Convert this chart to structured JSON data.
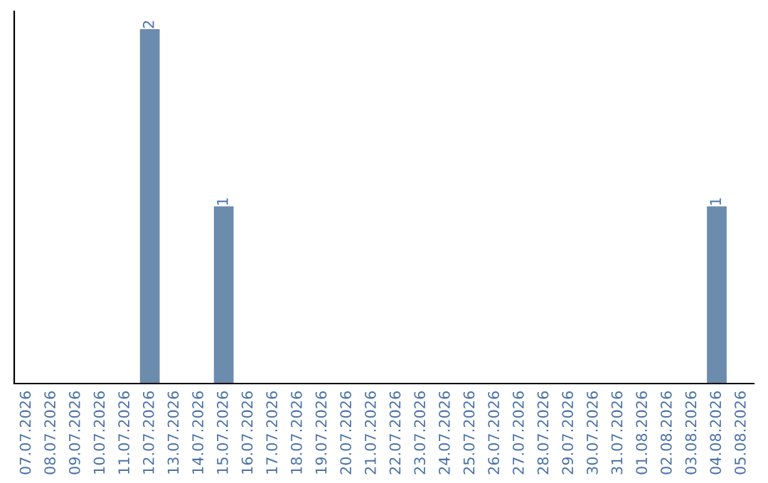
{
  "chart_data": {
    "type": "bar",
    "categories": [
      "07.07.2026",
      "08.07.2026",
      "09.07.2026",
      "10.07.2026",
      "11.07.2026",
      "12.07.2026",
      "13.07.2026",
      "14.07.2026",
      "15.07.2026",
      "16.07.2026",
      "17.07.2026",
      "18.07.2026",
      "19.07.2026",
      "20.07.2026",
      "21.07.2026",
      "22.07.2026",
      "23.07.2026",
      "24.07.2026",
      "25.07.2026",
      "26.07.2026",
      "27.07.2026",
      "28.07.2026",
      "29.07.2026",
      "30.07.2026",
      "31.07.2026",
      "01.08.2026",
      "02.08.2026",
      "03.08.2026",
      "04.08.2026",
      "05.08.2026"
    ],
    "values": [
      0,
      0,
      0,
      0,
      0,
      2,
      0,
      0,
      1,
      0,
      0,
      0,
      0,
      0,
      0,
      0,
      0,
      0,
      0,
      0,
      0,
      0,
      0,
      0,
      0,
      0,
      0,
      0,
      1,
      0
    ],
    "value_labels": [
      null,
      null,
      null,
      null,
      null,
      "2",
      null,
      null,
      "1",
      null,
      null,
      null,
      null,
      null,
      null,
      null,
      null,
      null,
      null,
      null,
      null,
      null,
      null,
      null,
      null,
      null,
      null,
      null,
      "1",
      null
    ],
    "color": "#6b8cad",
    "ylim": [
      0,
      2.1
    ],
    "tick_labels": "x",
    "grid": false,
    "legend": false
  }
}
